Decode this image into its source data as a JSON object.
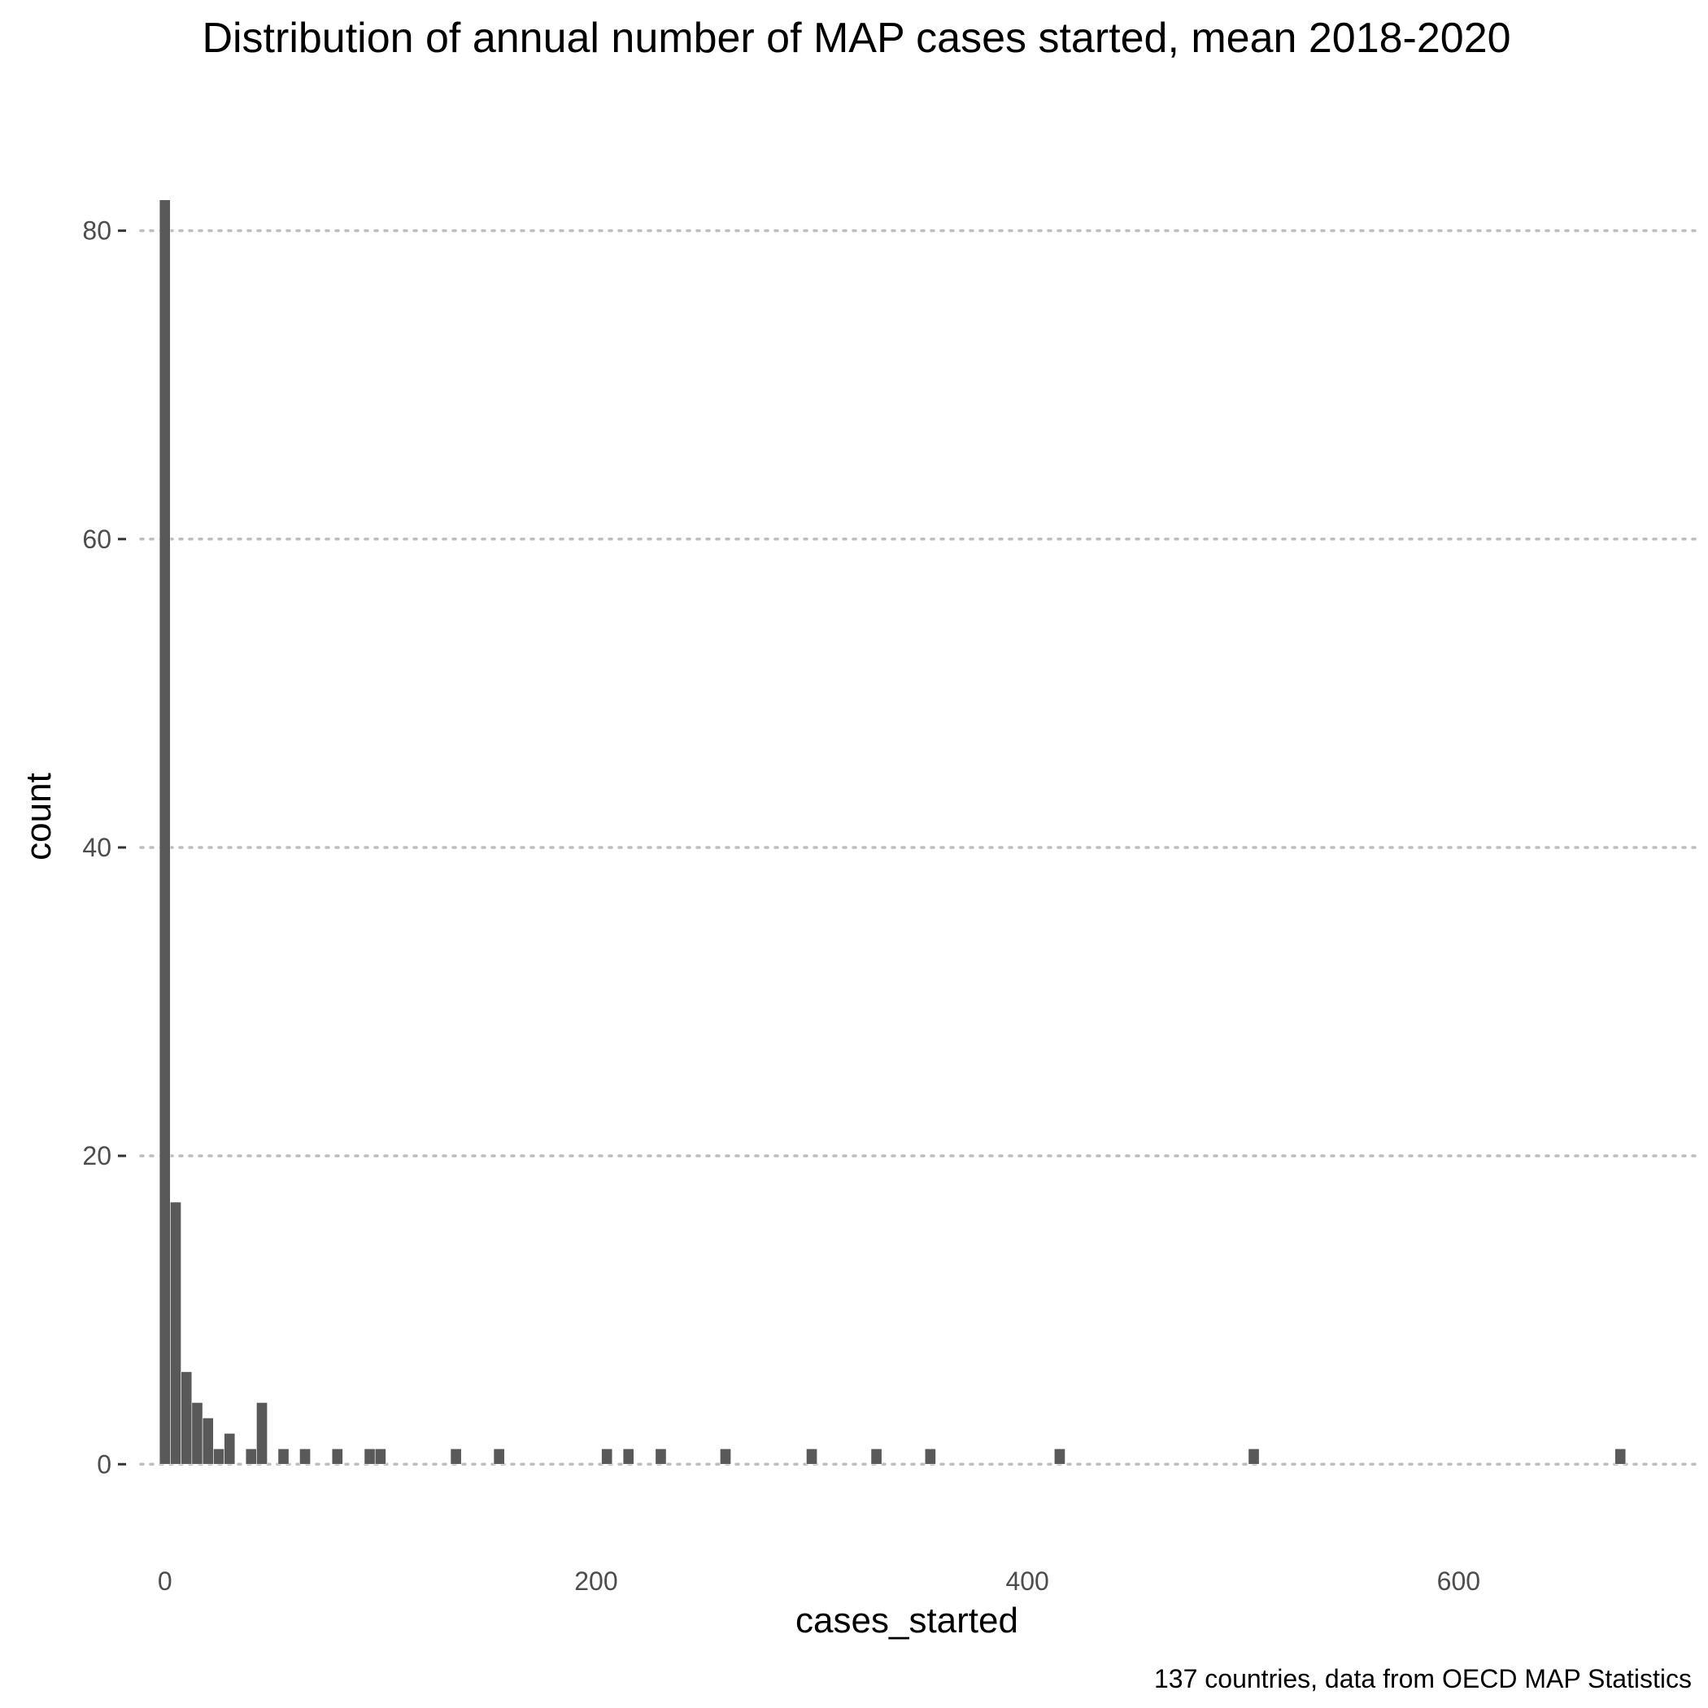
{
  "chart_data": {
    "type": "bar",
    "title": "Distribution of annual number of MAP cases started, mean 2018-2020",
    "xlabel": "cases_started",
    "ylabel": "count",
    "caption": "137 countries, data from OECD MAP Statistics",
    "xlim": [
      -18,
      710
    ],
    "ylim": [
      -4.1,
      86.1
    ],
    "x_ticks": [
      0,
      200,
      400,
      600
    ],
    "y_ticks": [
      0,
      20,
      40,
      60,
      80
    ],
    "grid": "horizontal-dotted",
    "bar_color": "#595959",
    "bin_width": 5,
    "bins": [
      {
        "x": 0,
        "count": 82
      },
      {
        "x": 5,
        "count": 17
      },
      {
        "x": 10,
        "count": 6
      },
      {
        "x": 15,
        "count": 4
      },
      {
        "x": 20,
        "count": 3
      },
      {
        "x": 25,
        "count": 1
      },
      {
        "x": 30,
        "count": 2
      },
      {
        "x": 40,
        "count": 1
      },
      {
        "x": 45,
        "count": 4
      },
      {
        "x": 55,
        "count": 1
      },
      {
        "x": 65,
        "count": 1
      },
      {
        "x": 80,
        "count": 1
      },
      {
        "x": 95,
        "count": 1
      },
      {
        "x": 100,
        "count": 1
      },
      {
        "x": 135,
        "count": 1
      },
      {
        "x": 155,
        "count": 1
      },
      {
        "x": 205,
        "count": 1
      },
      {
        "x": 215,
        "count": 1
      },
      {
        "x": 230,
        "count": 1
      },
      {
        "x": 260,
        "count": 1
      },
      {
        "x": 300,
        "count": 1
      },
      {
        "x": 330,
        "count": 1
      },
      {
        "x": 355,
        "count": 1
      },
      {
        "x": 415,
        "count": 1
      },
      {
        "x": 505,
        "count": 1
      },
      {
        "x": 675,
        "count": 1
      }
    ]
  }
}
